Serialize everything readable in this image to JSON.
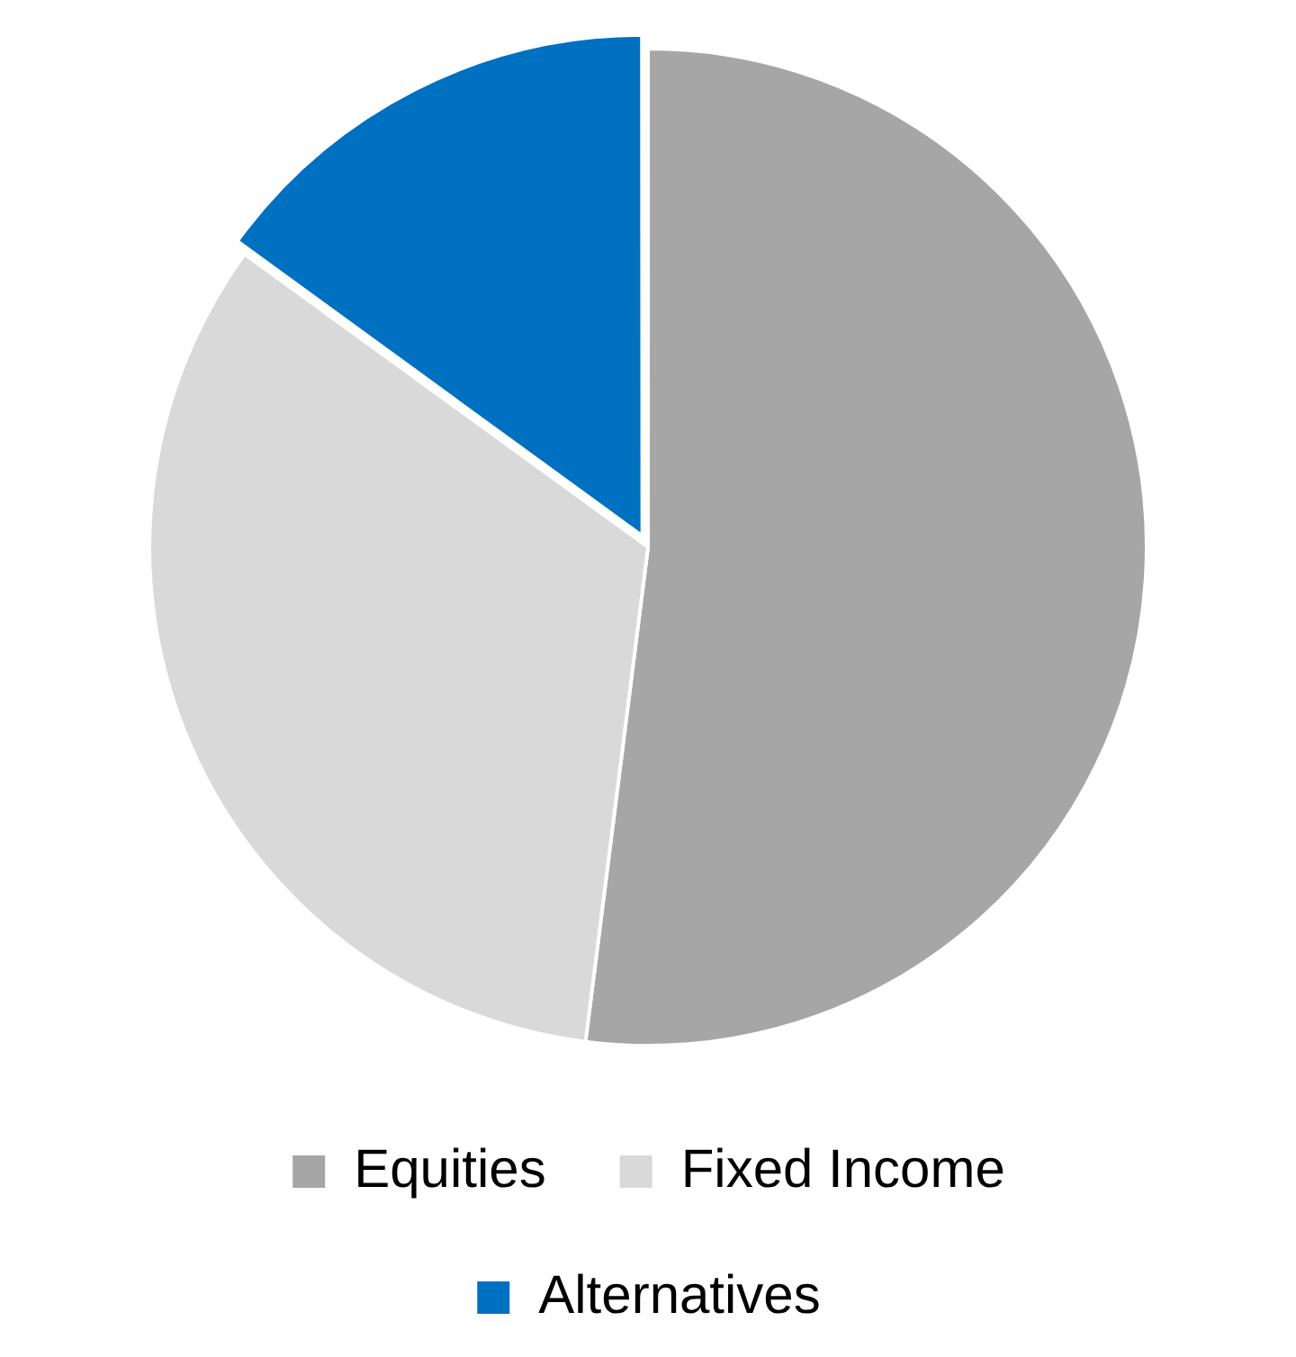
{
  "chart_data": {
    "type": "pie",
    "categories": [
      "Equities",
      "Fixed Income",
      "Alternatives"
    ],
    "values": [
      52,
      33,
      15
    ],
    "colors": [
      "#a6a6a6",
      "#d9d9d9",
      "#0070c0"
    ],
    "legend": "bottom"
  }
}
